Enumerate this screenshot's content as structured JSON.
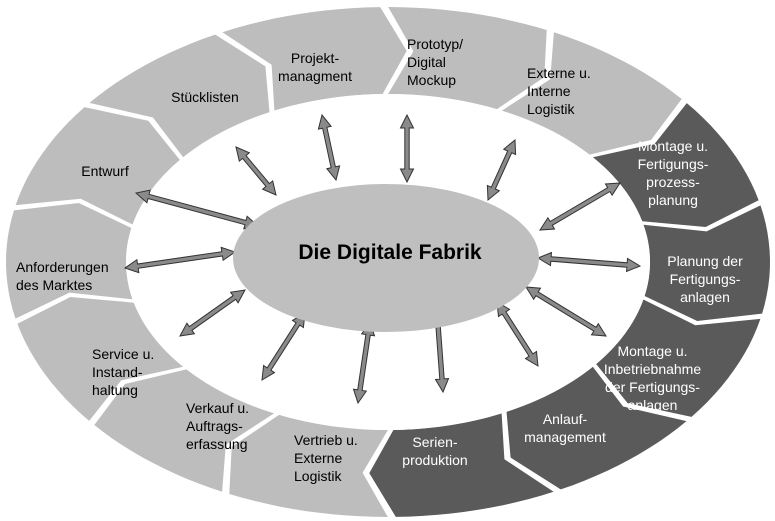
{
  "center": {
    "title": "Die Digitale Fabrik"
  },
  "colors": {
    "light": "#bdbdbd",
    "dark": "#5a5a5a",
    "arrow_fill": "#8a8a8a",
    "arrow_stroke": "#333333",
    "center_fill": "#bfbfbf"
  },
  "segments": [
    {
      "id": "stuecklisten",
      "label": "Stücklisten",
      "tone": "light"
    },
    {
      "id": "projekt",
      "label": "Projekt-\nmanagment",
      "tone": "light"
    },
    {
      "id": "prototyp",
      "label": "Prototyp/\nDigital\nMockup",
      "tone": "light"
    },
    {
      "id": "externe-interne",
      "label": "Externe u.\nInterne\nLogistik",
      "tone": "light"
    },
    {
      "id": "montage-planung",
      "label": "Montage u.\nFertigungs-\nprozess-\nplanung",
      "tone": "dark"
    },
    {
      "id": "planung-anlagen",
      "label": "Planung der\nFertigungs-\nanlagen",
      "tone": "dark"
    },
    {
      "id": "montage-inbetrieb",
      "label": "Montage u.\nInbetriebnahme\nder Fertigungs-\nanlagen",
      "tone": "dark"
    },
    {
      "id": "anlauf",
      "label": "Anlauf-\nmanagement",
      "tone": "dark"
    },
    {
      "id": "serien",
      "label": "Serien-\nproduktion",
      "tone": "dark"
    },
    {
      "id": "vertrieb",
      "label": "Vertrieb u.\nExterne\nLogistik",
      "tone": "light"
    },
    {
      "id": "verkauf",
      "label": "Verkauf u.\nAuftrags-\nerfassung",
      "tone": "light"
    },
    {
      "id": "service",
      "label": "Service u.\nInstand-\nhaltung",
      "tone": "light"
    },
    {
      "id": "anforderungen",
      "label": "Anforderungen\ndes Marktes",
      "tone": "light"
    },
    {
      "id": "entwurf",
      "label": "Entwurf",
      "tone": "light"
    }
  ]
}
